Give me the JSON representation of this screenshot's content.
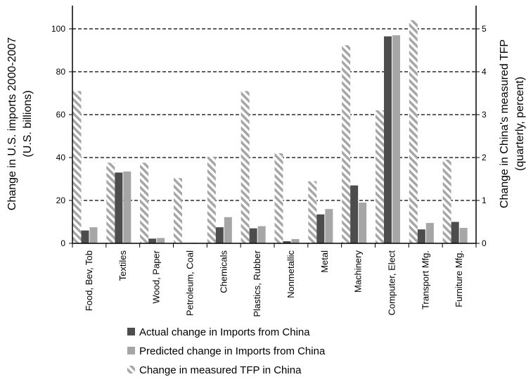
{
  "chart_data": {
    "type": "bar",
    "categories": [
      "Food, Bev, Tob",
      "Textiles",
      "Wood, Paper",
      "Petroleum, Coal",
      "Chemicals",
      "Plastics, Rubber",
      "Nonmetallic",
      "Metal",
      "Machinery",
      "Computer, Elect",
      "Transport  Mfg.",
      "Furniture Mfg."
    ],
    "series": [
      {
        "name": "Actual change in Imports from China",
        "axis": "left",
        "color": "#4d4d4d",
        "style": "solid",
        "values": [
          6,
          33,
          2.2,
          0.2,
          7.5,
          7,
          1,
          13.5,
          27,
          96.5,
          6.5,
          10
        ]
      },
      {
        "name": "Predicted change in Imports from China",
        "axis": "left",
        "color": "#a6a6a6",
        "style": "solid",
        "values": [
          7.5,
          33.5,
          2.5,
          0.3,
          12.2,
          8,
          2,
          16,
          19,
          97,
          9.5,
          7.2
        ]
      },
      {
        "name": "Change in measured TFP in China",
        "axis": "right",
        "color": "#a6a6a6",
        "style": "hatched",
        "values": [
          3.55,
          1.88,
          1.88,
          1.52,
          2.02,
          3.55,
          2.1,
          1.45,
          4.62,
          3.1,
          5.2,
          1.95
        ]
      }
    ],
    "ylabel": "Change in U.S. imports 2000-2007\n(U.S. billions)",
    "ylabel2": "Change in China's measured TFP\n(quarterly, percent)",
    "ylim": [
      0,
      110
    ],
    "ylim2": [
      0,
      5.5
    ],
    "yticks": [
      0,
      20,
      40,
      60,
      80,
      100
    ],
    "yticks2": [
      0,
      1,
      2,
      3,
      4,
      5
    ],
    "grid": true,
    "legend_position": "bottom"
  }
}
